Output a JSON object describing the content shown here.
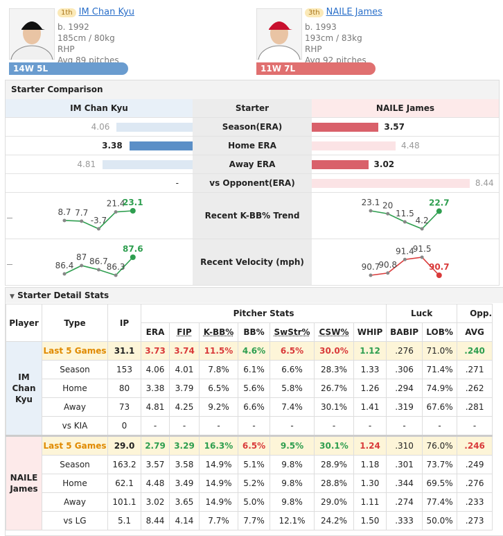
{
  "pitchers": [
    {
      "rank": "1th",
      "name": "IM Chan Kyu",
      "birth": "b. 1992",
      "body": "185cm / 80kg",
      "throws": "RHP",
      "pitches": "Avg 89 pitches",
      "record": "14W 5L",
      "color": "#6a9ccf"
    },
    {
      "rank": "3th",
      "name": "NAILE James",
      "birth": "b. 1993",
      "body": "193cm / 83kg",
      "throws": "RHP",
      "pitches": "Avg 92 pitches",
      "record": "11W 7L",
      "color": "#e07070"
    }
  ],
  "comparison": {
    "title": "Starter Comparison",
    "header": [
      "IM Chan Kyu",
      "Starter",
      "NAILE James"
    ],
    "rows": [
      {
        "label": "Season(ERA)",
        "left": 4.06,
        "right": 3.57
      },
      {
        "label": "Home ERA",
        "left": 3.38,
        "right": 4.48
      },
      {
        "label": "Away ERA",
        "left": 4.81,
        "right": 3.02
      },
      {
        "label": "vs Opponent(ERA)",
        "left": "-",
        "right": 8.44
      }
    ],
    "left_colors": {
      "strong": "#5b8fc7",
      "weak": "#dde8f3"
    },
    "right_colors": {
      "strong": "#d9606a",
      "weak": "#fbe3e5"
    }
  },
  "trends": {
    "up_color": "#2e9e4f",
    "down_color": "#d93a3a",
    "line_color": "#2e9e4f",
    "items": [
      {
        "label": "Recent K-BB% Trend",
        "left": [
          8.7,
          7.7,
          -3.7,
          21.4,
          23.1
        ],
        "right": [
          23.1,
          20,
          11.5,
          4.2,
          22.7
        ]
      },
      {
        "label": "Recent Velocity (mph)",
        "left": [
          86.4,
          87,
          86.7,
          86.3,
          87.6
        ],
        "right": [
          90.7,
          90.8,
          91.4,
          91.5,
          90.7
        ]
      }
    ]
  },
  "detail": {
    "title": "Starter Detail Stats",
    "fixed": [
      "Player",
      "Type",
      "IP"
    ],
    "groups": [
      "Pitcher Stats",
      "Luck",
      "Opp. I"
    ],
    "columns": [
      "ERA",
      "FIP",
      "K-BB%",
      "BB%",
      "SwStr%",
      "CSW%",
      "WHIP",
      "BABIP",
      "LOB%",
      "AVG"
    ],
    "up_color": "#2e9e4f",
    "down_color": "#d93a3a",
    "players": [
      {
        "name": "IM Chan Kyu",
        "rows": [
          {
            "type": "Last 5 Games",
            "ip": "31.1",
            "cells": [
              "3.73",
              "3.74",
              "11.5%",
              "4.6%",
              "6.5%",
              "30.0%",
              "1.12",
              ".276",
              "71.0%",
              ".240"
            ],
            "tones": [
              "down",
              "down",
              "down",
              "up",
              "down",
              "down",
              "up",
              null,
              null,
              "up"
            ]
          },
          {
            "type": "Season",
            "ip": "153",
            "cells": [
              "4.06",
              "4.01",
              "7.8%",
              "6.1%",
              "6.6%",
              "28.3%",
              "1.33",
              ".306",
              "71.4%",
              ".271"
            ]
          },
          {
            "type": "Home",
            "ip": "80",
            "cells": [
              "3.38",
              "3.79",
              "6.5%",
              "5.6%",
              "5.8%",
              "26.7%",
              "1.26",
              ".294",
              "74.9%",
              ".262"
            ]
          },
          {
            "type": "Away",
            "ip": "73",
            "cells": [
              "4.81",
              "4.25",
              "9.2%",
              "6.6%",
              "7.4%",
              "30.1%",
              "1.41",
              ".319",
              "67.6%",
              ".281"
            ]
          },
          {
            "type": "vs KIA",
            "ip": "0",
            "cells": [
              "-",
              "-",
              "-",
              "-",
              "-",
              "-",
              "-",
              "-",
              "-",
              "-"
            ]
          }
        ]
      },
      {
        "name": "NAILE James",
        "rows": [
          {
            "type": "Last 5 Games",
            "ip": "29.0",
            "cells": [
              "2.79",
              "3.29",
              "16.3%",
              "6.5%",
              "9.5%",
              "30.1%",
              "1.24",
              ".310",
              "76.0%",
              ".246"
            ],
            "tones": [
              "up",
              "up",
              "up",
              "down",
              "up",
              "up",
              "down",
              null,
              null,
              "down"
            ]
          },
          {
            "type": "Season",
            "ip": "163.2",
            "cells": [
              "3.57",
              "3.58",
              "14.9%",
              "5.1%",
              "9.8%",
              "28.9%",
              "1.18",
              ".301",
              "73.7%",
              ".249"
            ]
          },
          {
            "type": "Home",
            "ip": "62.1",
            "cells": [
              "4.48",
              "3.49",
              "14.9%",
              "5.2%",
              "9.8%",
              "28.8%",
              "1.30",
              ".344",
              "69.5%",
              ".276"
            ]
          },
          {
            "type": "Away",
            "ip": "101.1",
            "cells": [
              "3.02",
              "3.65",
              "14.9%",
              "5.0%",
              "9.8%",
              "29.0%",
              "1.11",
              ".274",
              "77.4%",
              ".233"
            ]
          },
          {
            "type": "vs LG",
            "ip": "5.1",
            "cells": [
              "8.44",
              "4.14",
              "7.7%",
              "7.7%",
              "12.1%",
              "24.2%",
              "1.50",
              ".333",
              "50.0%",
              ".273"
            ]
          }
        ]
      }
    ]
  }
}
